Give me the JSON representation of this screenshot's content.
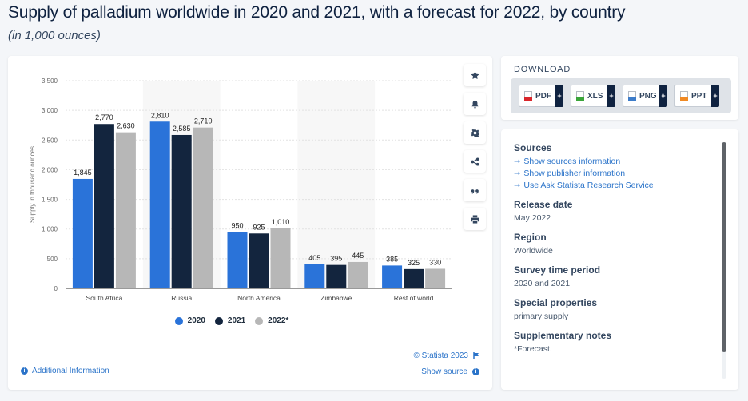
{
  "header": {
    "title": "Supply of palladium worldwide in 2020 and 2021, with a forecast for 2022, by country",
    "subtitle": "(in 1,000 ounces)"
  },
  "chart_data": {
    "type": "bar",
    "title": "Supply of palladium worldwide in 2020 and 2021, with a forecast for 2022, by country",
    "subtitle": "(in 1,000 ounces)",
    "xlabel": "",
    "ylabel": "Supply in thousand ounces",
    "categories": [
      "South Africa",
      "Russia",
      "North America",
      "Zimbabwe",
      "Rest of world"
    ],
    "series": [
      {
        "name": "2020",
        "color": "#2a73d9",
        "values": [
          1845,
          2810,
          950,
          405,
          385
        ],
        "labels": [
          "1,845",
          "2,810",
          "950",
          "405",
          "385"
        ]
      },
      {
        "name": "2021",
        "color": "#13253e",
        "values": [
          2770,
          2585,
          925,
          395,
          325
        ],
        "labels": [
          "2,770",
          "2,585",
          "925",
          "395",
          "325"
        ]
      },
      {
        "name": "2022*",
        "color": "#b7b7b7",
        "values": [
          2630,
          2710,
          1010,
          445,
          330
        ],
        "labels": [
          "2,630",
          "2,710",
          "1,010",
          "445",
          "330"
        ]
      }
    ],
    "yticks": [
      0,
      500,
      1000,
      1500,
      2000,
      2500,
      3000,
      3500
    ],
    "ytick_labels": [
      "0",
      "500",
      "1,000",
      "1,500",
      "2,000",
      "2,500",
      "3,000",
      "3,500"
    ],
    "ylim": [
      0,
      3500
    ],
    "grid": true,
    "legend_position": "bottom-center"
  },
  "footer": {
    "copyright": "© Statista 2023",
    "show_source": "Show source",
    "additional_info": "Additional Information"
  },
  "toolbar": {
    "icons": [
      "star-icon",
      "bell-icon",
      "gear-icon",
      "share-icon",
      "quote-icon",
      "print-icon"
    ]
  },
  "download": {
    "title": "DOWNLOAD",
    "buttons": [
      {
        "label": "PDF",
        "color": "#d9262b"
      },
      {
        "label": "XLS",
        "color": "#3aa53a"
      },
      {
        "label": "PNG",
        "color": "#3d7cc9"
      },
      {
        "label": "PPT",
        "color": "#f08a24"
      }
    ],
    "plus": "+"
  },
  "info": {
    "sources_heading": "Sources",
    "links": [
      "Show sources information",
      "Show publisher information",
      "Use Ask Statista Research Service"
    ],
    "sections": [
      {
        "heading": "Release date",
        "value": "May 2022"
      },
      {
        "heading": "Region",
        "value": "Worldwide"
      },
      {
        "heading": "Survey time period",
        "value": "2020 and 2021"
      },
      {
        "heading": "Special properties",
        "value": "primary supply"
      },
      {
        "heading": "Supplementary notes",
        "value": "*Forecast."
      }
    ]
  }
}
